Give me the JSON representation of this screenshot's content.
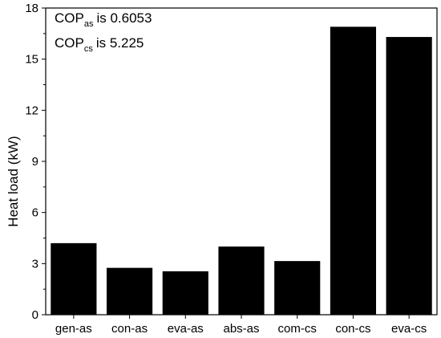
{
  "chart_data": {
    "type": "bar",
    "title": "",
    "xlabel": "",
    "ylabel": "Heat load (kW)",
    "ylim": [
      0,
      18
    ],
    "yticks": [
      0,
      3,
      6,
      9,
      12,
      15,
      18
    ],
    "grid": false,
    "categories": [
      "gen-as",
      "con-as",
      "eva-as",
      "abs-as",
      "com-cs",
      "con-cs",
      "eva-cs"
    ],
    "values": [
      4.2,
      2.75,
      2.55,
      4.0,
      3.15,
      16.9,
      16.3
    ],
    "bar_color": "#000000",
    "annotations": [
      {
        "main": "COP",
        "sub": "as",
        "text": "is 0.6053"
      },
      {
        "main": "COP",
        "sub": "cs",
        "text": "is 5.225"
      }
    ]
  }
}
